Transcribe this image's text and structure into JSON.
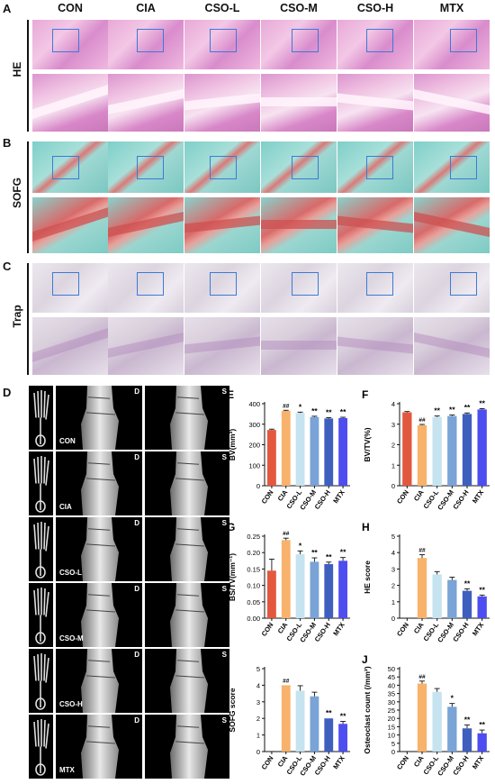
{
  "panels": {
    "A": "A",
    "B": "B",
    "C": "C",
    "D": "D",
    "E": "E",
    "F": "F",
    "G": "G",
    "H": "H",
    "I": "I",
    "J": "J"
  },
  "groups": [
    "CON",
    "CIA",
    "CSO-L",
    "CSO-M",
    "CSO-H",
    "MTX"
  ],
  "rows": {
    "he": "HE",
    "sofg": "SOFG",
    "trap": "Trap"
  },
  "ct_views": {
    "dorsal": "D",
    "side": "S"
  },
  "colors": {
    "CON": "#e2583e",
    "CIA": "#f7b26b",
    "CSO-L": "#c6e3f0",
    "CSO-M": "#7aa3d6",
    "CSO-H": "#3f5fbf",
    "MTX": "#4d4df0"
  },
  "chart_data": [
    {
      "id": "E",
      "type": "bar",
      "ylabel": "BV(mm³)",
      "ylim": [
        0,
        400
      ],
      "yticks": [
        0,
        100,
        200,
        300,
        400
      ],
      "categories": [
        "CON",
        "CIA",
        "CSO-L",
        "CSO-M",
        "CSO-H",
        "MTX"
      ],
      "values": [
        272,
        365,
        355,
        335,
        328,
        330
      ],
      "errors": [
        4,
        3,
        4,
        4,
        4,
        4
      ],
      "marks": [
        "",
        "##",
        "*",
        "**",
        "**",
        "**"
      ]
    },
    {
      "id": "F",
      "type": "bar",
      "ylabel": "BV/TV(%)",
      "ylim": [
        0,
        4
      ],
      "yticks": [
        0,
        1,
        2,
        3,
        4
      ],
      "categories": [
        "CON",
        "CIA",
        "CSO-L",
        "CSO-M",
        "CSO-H",
        "MTX"
      ],
      "values": [
        3.58,
        2.95,
        3.35,
        3.4,
        3.5,
        3.72
      ],
      "errors": [
        0.04,
        0.04,
        0.05,
        0.05,
        0.05,
        0.04
      ],
      "marks": [
        "",
        "##",
        "**",
        "**",
        "**",
        "**"
      ]
    },
    {
      "id": "G",
      "type": "bar",
      "ylabel": "BS/TV(mm⁻¹)",
      "ylim": [
        0,
        0.25
      ],
      "yticks": [
        0.0,
        0.05,
        0.1,
        0.15,
        0.2,
        0.25
      ],
      "categories": [
        "CON",
        "CIA",
        "CSO-L",
        "CSO-M",
        "CSO-H",
        "MTX"
      ],
      "values": [
        0.145,
        0.238,
        0.195,
        0.172,
        0.165,
        0.175
      ],
      "errors": [
        0.035,
        0.006,
        0.01,
        0.012,
        0.006,
        0.01
      ],
      "marks": [
        "",
        "##",
        "*",
        "**",
        "**",
        "**"
      ]
    },
    {
      "id": "H",
      "type": "bar",
      "ylabel": "HE score",
      "ylim": [
        0,
        5
      ],
      "yticks": [
        0,
        1,
        2,
        3,
        4,
        5
      ],
      "categories": [
        "CON",
        "CIA",
        "CSO-L",
        "CSO-M",
        "CSO-H",
        "MTX"
      ],
      "values": [
        0,
        3.67,
        2.67,
        2.33,
        1.67,
        1.33
      ],
      "errors": [
        0,
        0.2,
        0.17,
        0.17,
        0.12,
        0.08
      ],
      "marks": [
        "",
        "##",
        "",
        "",
        "**",
        "**"
      ]
    },
    {
      "id": "I",
      "type": "bar",
      "ylabel": "SOFG score",
      "ylim": [
        0,
        5
      ],
      "yticks": [
        0,
        1,
        2,
        3,
        4,
        5
      ],
      "categories": [
        "CON",
        "CIA",
        "CSO-L",
        "CSO-M",
        "CSO-H",
        "MTX"
      ],
      "values": [
        0,
        4.0,
        3.67,
        3.33,
        2.0,
        1.67
      ],
      "errors": [
        0,
        0,
        0.3,
        0.25,
        0,
        0.15
      ],
      "marks": [
        "",
        "##",
        "",
        "",
        "**",
        "**"
      ]
    },
    {
      "id": "J",
      "type": "bar",
      "ylabel": "Osteoclast count (/mm²)",
      "ylim": [
        0,
        50
      ],
      "yticks": [
        0,
        5,
        10,
        15,
        20,
        25,
        30,
        35,
        40,
        45,
        50
      ],
      "categories": [
        "CON",
        "CIA",
        "CSO-L",
        "CSO-M",
        "CSO-H",
        "MTX"
      ],
      "values": [
        0,
        41,
        36,
        27,
        14,
        11
      ],
      "errors": [
        0,
        1.5,
        2,
        2,
        2,
        2
      ],
      "marks": [
        "",
        "##",
        "",
        "*",
        "**",
        "**"
      ]
    }
  ]
}
